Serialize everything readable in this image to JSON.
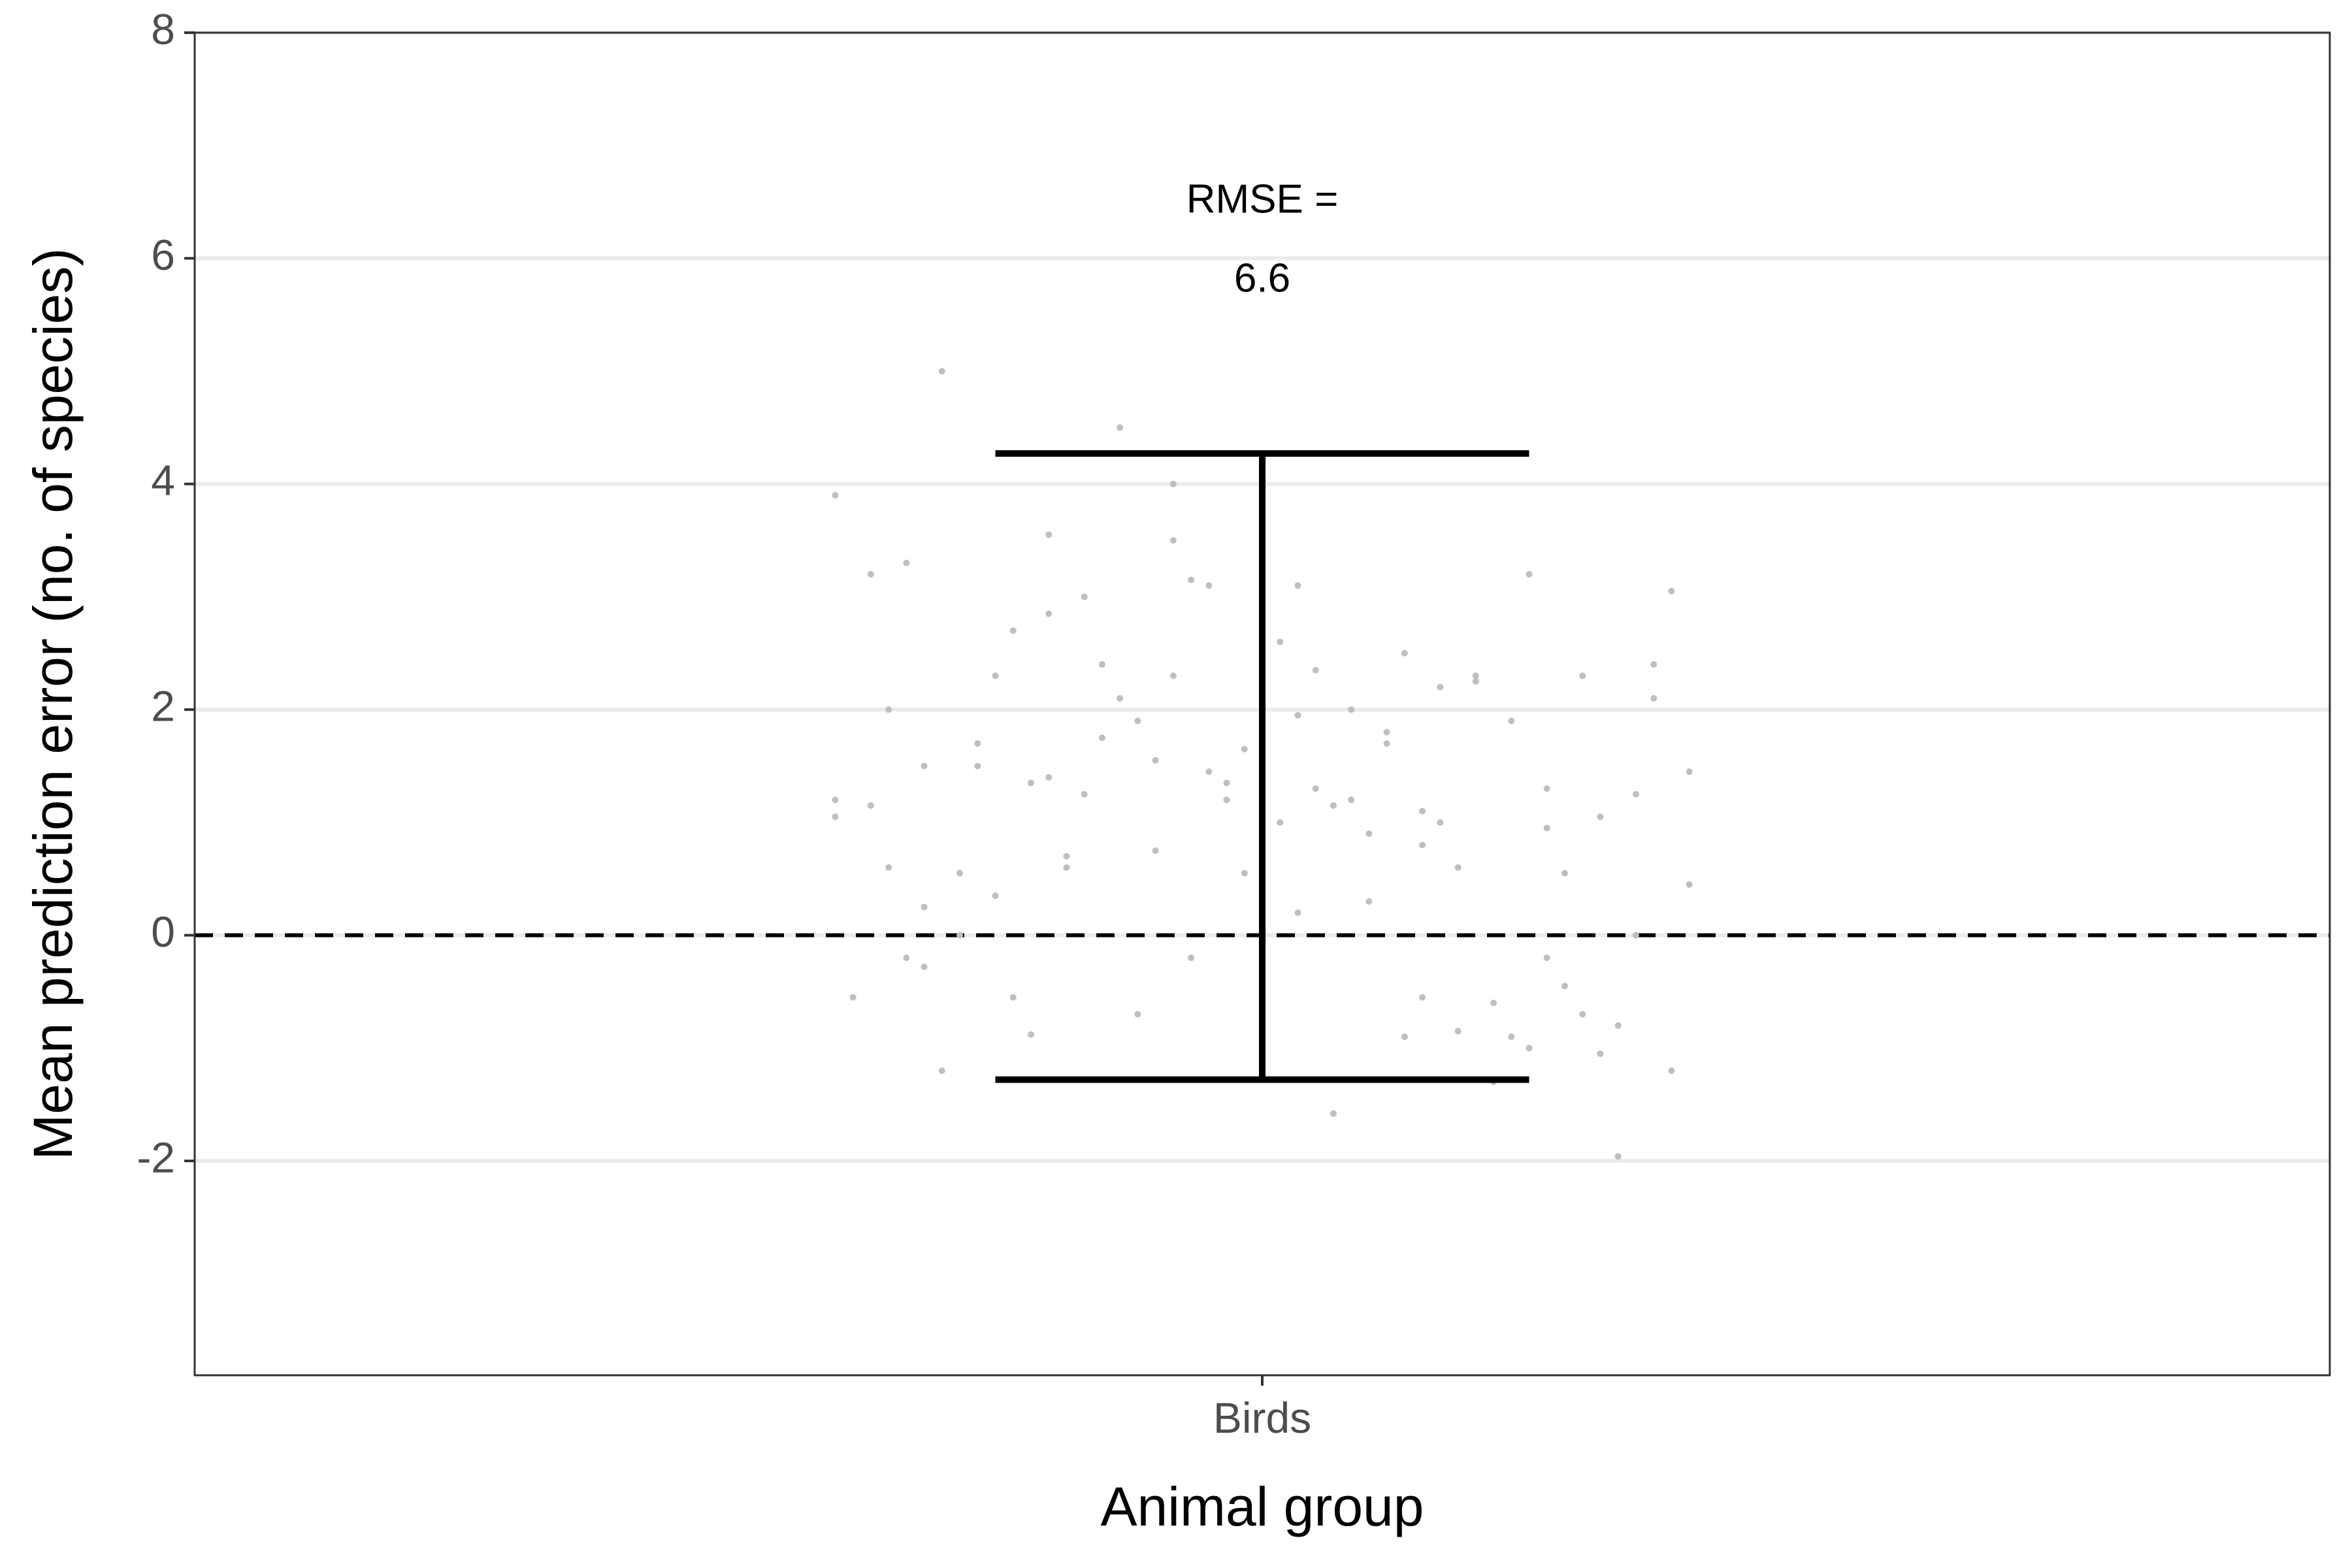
{
  "chart_data": {
    "type": "scatter",
    "xlabel": "Animal group",
    "ylabel": "Mean prediction error (no. of species)",
    "categories": [
      "Birds"
    ],
    "ylim": [
      -3.9,
      8.0
    ],
    "y_ticks": [
      -2,
      0,
      2,
      4,
      6,
      8
    ],
    "y_tick_labels": [
      "-2",
      "0",
      "2",
      "4",
      "6",
      "8"
    ],
    "grid": "horizontal major gridlines",
    "reference_line": {
      "y": 0,
      "style": "dashed"
    },
    "error_bar": {
      "category": "Birds",
      "low": -1.28,
      "high": 4.27,
      "mean": 1.5
    },
    "annotation": {
      "category": "Birds",
      "line1": "RMSE =",
      "line2": "6.6",
      "y_line1": 6.5,
      "y_line2": 5.8
    },
    "points": {
      "category": "Birds",
      "color": "#bfbfbf",
      "jitter": [
        -0.24,
        -0.24,
        -0.24,
        -0.23,
        -0.22,
        -0.22,
        -0.21,
        -0.21,
        -0.2,
        -0.2,
        -0.19,
        -0.19,
        -0.19,
        -0.18,
        -0.18,
        -0.17,
        -0.17,
        -0.16,
        -0.16,
        -0.15,
        -0.15,
        -0.14,
        -0.14,
        -0.13,
        -0.13,
        -0.12,
        -0.12,
        -0.12,
        -0.11,
        -0.11,
        -0.1,
        -0.1,
        -0.09,
        -0.09,
        -0.08,
        -0.08,
        -0.07,
        -0.07,
        -0.06,
        -0.06,
        -0.05,
        -0.05,
        -0.05,
        -0.04,
        -0.04,
        -0.03,
        -0.03,
        -0.02,
        -0.02,
        -0.01,
        -0.01,
        0.0,
        0.0,
        0.01,
        0.01,
        0.02,
        0.02,
        0.02,
        0.03,
        0.03,
        0.04,
        0.04,
        0.05,
        0.05,
        0.06,
        0.06,
        0.07,
        0.07,
        0.08,
        0.08,
        0.09,
        0.09,
        0.09,
        0.1,
        0.1,
        0.11,
        0.11,
        0.12,
        0.12,
        0.13,
        0.13,
        0.14,
        0.14,
        0.15,
        0.15,
        0.16,
        0.16,
        0.16,
        0.17,
        0.17,
        0.18,
        0.18,
        0.19,
        0.19,
        0.2,
        0.2,
        0.21,
        0.21,
        0.22,
        0.22,
        0.23,
        0.23,
        0.24,
        0.24
      ],
      "y": [
        3.9,
        1.05,
        1.2,
        -0.55,
        3.2,
        1.15,
        2.0,
        0.6,
        -0.2,
        3.3,
        0.25,
        1.5,
        -0.28,
        -1.2,
        5.0,
        0.55,
        0.0,
        1.7,
        1.5,
        2.3,
        0.35,
        2.7,
        -0.55,
        -0.88,
        1.35,
        3.55,
        1.4,
        2.85,
        0.6,
        0.7,
        3.0,
        1.25,
        2.4,
        1.75,
        4.5,
        2.1,
        1.9,
        -0.7,
        0.75,
        1.55,
        4.0,
        3.5,
        2.3,
        -0.2,
        3.15,
        1.45,
        3.1,
        1.2,
        1.35,
        0.55,
        1.65,
        2.75,
        1.55,
        2.6,
        1.0,
        0.2,
        1.95,
        3.1,
        1.3,
        2.35,
        -1.58,
        1.15,
        1.2,
        2.0,
        0.9,
        0.3,
        1.7,
        1.8,
        -0.9,
        2.5,
        0.8,
        -0.55,
        1.1,
        1.0,
        2.2,
        -0.85,
        0.6,
        2.25,
        2.3,
        -1.3,
        -0.6,
        1.9,
        -0.9,
        -1.0,
        3.2,
        0.95,
        -0.2,
        1.3,
        -0.45,
        0.55,
        2.3,
        -0.7,
        1.05,
        -1.05,
        -1.96,
        -0.8,
        0.0,
        1.25,
        2.1,
        2.4,
        -1.2,
        3.05,
        0.45,
        1.45
      ]
    }
  }
}
